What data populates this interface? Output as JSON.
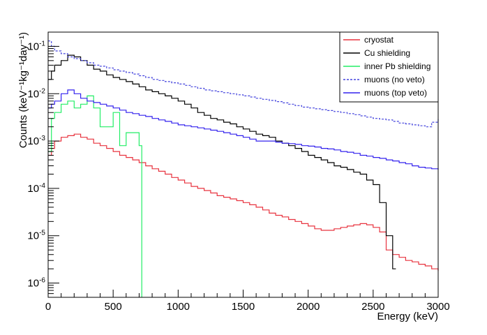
{
  "chart_data": {
    "type": "line",
    "title": "",
    "xlabel": "Energy (keV)",
    "ylabel": "Counts (keV⁻¹kg⁻¹day⁻¹)",
    "xlim": [
      0,
      3000
    ],
    "ylim": [
      5e-07,
      0.2
    ],
    "yscale": "log",
    "grid": false,
    "legend_position": "top-right",
    "x_ticks": [
      0,
      500,
      1000,
      1500,
      2000,
      2500,
      3000
    ],
    "x_tick_labels": [
      "0",
      "500",
      "1000",
      "1500",
      "2000",
      "2500",
      "3000"
    ],
    "y_ticks": [
      1e-06,
      1e-05,
      0.0001,
      0.001,
      0.01,
      0.1
    ],
    "y_tick_labels": [
      {
        "base": "10",
        "exp": "-6"
      },
      {
        "base": "10",
        "exp": "-5"
      },
      {
        "base": "10",
        "exp": "-4"
      },
      {
        "base": "10",
        "exp": "-3"
      },
      {
        "base": "10",
        "exp": "-2"
      },
      {
        "base": "10",
        "exp": "-1"
      }
    ],
    "series": [
      {
        "name": "cryostat",
        "color": "#e8333f",
        "dash": false,
        "x": [
          0,
          25,
          50,
          100,
          150,
          200,
          250,
          300,
          350,
          400,
          450,
          500,
          550,
          600,
          650,
          700,
          750,
          800,
          850,
          900,
          950,
          1000,
          1050,
          1100,
          1150,
          1200,
          1250,
          1300,
          1350,
          1400,
          1450,
          1500,
          1550,
          1600,
          1650,
          1700,
          1750,
          1800,
          1850,
          1900,
          1950,
          2000,
          2050,
          2100,
          2150,
          2200,
          2250,
          2300,
          2350,
          2400,
          2450,
          2500,
          2550,
          2600,
          2650,
          2700,
          2750,
          2800,
          2850,
          2900,
          2950,
          3000
        ],
        "y": [
          0.0005,
          0.0007,
          0.001,
          0.0012,
          0.0013,
          0.0014,
          0.0012,
          0.0011,
          0.0009,
          0.0008,
          0.0007,
          0.0006,
          0.0005,
          0.00045,
          0.0004,
          0.00035,
          0.0003,
          0.00026,
          0.00023,
          0.0002,
          0.00017,
          0.00015,
          0.00013,
          0.00011,
          0.0001,
          9e-05,
          8e-05,
          7e-05,
          6.5e-05,
          6e-05,
          5.5e-05,
          5e-05,
          4.5e-05,
          4e-05,
          3.5e-05,
          3e-05,
          2.7e-05,
          2.5e-05,
          2.2e-05,
          2e-05,
          1.8e-05,
          1.6e-05,
          1.4e-05,
          1.3e-05,
          1.3e-05,
          1.4e-05,
          1.5e-05,
          1.6e-05,
          1.7e-05,
          1.8e-05,
          1.7e-05,
          1.5e-05,
          1.2e-05,
          5e-06,
          4e-06,
          3.5e-06,
          3e-06,
          2.8e-06,
          2.5e-06,
          2.3e-06,
          2e-06,
          1.8e-06
        ]
      },
      {
        "name": "Cu shielding",
        "color": "#000000",
        "dash": false,
        "x": [
          0,
          25,
          50,
          100,
          150,
          200,
          250,
          300,
          350,
          400,
          450,
          500,
          550,
          600,
          650,
          700,
          750,
          800,
          850,
          900,
          950,
          1000,
          1050,
          1100,
          1150,
          1200,
          1250,
          1300,
          1350,
          1400,
          1450,
          1500,
          1550,
          1600,
          1650,
          1700,
          1750,
          1800,
          1850,
          1900,
          1950,
          2000,
          2050,
          2100,
          2150,
          2200,
          2250,
          2300,
          2350,
          2400,
          2450,
          2500,
          2550,
          2600,
          2650
        ],
        "y": [
          0.02,
          0.03,
          0.04,
          0.05,
          0.065,
          0.06,
          0.05,
          0.04,
          0.033,
          0.03,
          0.025,
          0.022,
          0.02,
          0.018,
          0.016,
          0.014,
          0.012,
          0.011,
          0.01,
          0.009,
          0.008,
          0.007,
          0.006,
          0.005,
          0.004,
          0.0035,
          0.003,
          0.0028,
          0.0025,
          0.0023,
          0.002,
          0.0018,
          0.0016,
          0.0014,
          0.0013,
          0.0012,
          0.001,
          0.0009,
          0.0008,
          0.0007,
          0.0006,
          0.0005,
          0.00045,
          0.0004,
          0.00035,
          0.0003,
          0.00028,
          0.00025,
          0.00022,
          0.0002,
          0.00015,
          0.00012,
          5e-05,
          1e-05,
          2e-06
        ]
      },
      {
        "name": "inner Pb shielding",
        "color": "#22ee66",
        "dash": false,
        "x": [
          0,
          25,
          50,
          100,
          150,
          200,
          250,
          300,
          350,
          400,
          450,
          500,
          550,
          600,
          650,
          700,
          720
        ],
        "y": [
          0.0006,
          0.003,
          0.004,
          0.006,
          0.007,
          0.005,
          0.006,
          0.009,
          0.005,
          0.002,
          0.002,
          0.004,
          0.0008,
          0.0015,
          0.0015,
          0.0008,
          5e-07
        ]
      },
      {
        "name": "muons (no veto)",
        "color": "#4444dd",
        "dash": true,
        "x": [
          0,
          25,
          50,
          100,
          150,
          200,
          250,
          300,
          350,
          400,
          450,
          500,
          550,
          600,
          650,
          700,
          750,
          800,
          850,
          900,
          950,
          1000,
          1050,
          1100,
          1150,
          1200,
          1250,
          1300,
          1350,
          1400,
          1450,
          1500,
          1550,
          1600,
          1650,
          1700,
          1750,
          1800,
          1850,
          1900,
          1950,
          2000,
          2050,
          2100,
          2150,
          2200,
          2250,
          2300,
          2350,
          2400,
          2450,
          2500,
          2550,
          2600,
          2650,
          2700,
          2750,
          2800,
          2850,
          2900,
          2950,
          3000
        ],
        "y": [
          0.13,
          0.1,
          0.08,
          0.07,
          0.06,
          0.055,
          0.05,
          0.045,
          0.04,
          0.038,
          0.035,
          0.032,
          0.03,
          0.028,
          0.026,
          0.024,
          0.022,
          0.02,
          0.019,
          0.018,
          0.017,
          0.016,
          0.015,
          0.014,
          0.013,
          0.012,
          0.0115,
          0.011,
          0.0105,
          0.01,
          0.0095,
          0.009,
          0.0085,
          0.008,
          0.0076,
          0.0072,
          0.0068,
          0.0064,
          0.006,
          0.0056,
          0.0052,
          0.005,
          0.0048,
          0.0046,
          0.0044,
          0.0042,
          0.004,
          0.0038,
          0.0036,
          0.0034,
          0.0032,
          0.003,
          0.0029,
          0.0028,
          0.0026,
          0.0024,
          0.0023,
          0.0022,
          0.0021,
          0.002,
          0.0025,
          0.003
        ]
      },
      {
        "name": "muons (top veto)",
        "color": "#3322ee",
        "dash": false,
        "x": [
          0,
          25,
          50,
          100,
          150,
          200,
          250,
          300,
          350,
          400,
          450,
          500,
          550,
          600,
          650,
          700,
          750,
          800,
          850,
          900,
          950,
          1000,
          1050,
          1100,
          1150,
          1200,
          1250,
          1300,
          1350,
          1400,
          1450,
          1500,
          1550,
          1600,
          1650,
          1700,
          1750,
          1800,
          1850,
          1900,
          1950,
          2000,
          2050,
          2100,
          2150,
          2200,
          2250,
          2300,
          2350,
          2400,
          2450,
          2500,
          2550,
          2600,
          2650,
          2700,
          2750,
          2800,
          2850,
          2900,
          2950,
          3000
        ],
        "y": [
          0.005,
          0.006,
          0.007,
          0.01,
          0.012,
          0.01,
          0.008,
          0.007,
          0.0065,
          0.006,
          0.0055,
          0.005,
          0.0045,
          0.004,
          0.0038,
          0.0035,
          0.0033,
          0.003,
          0.0028,
          0.0026,
          0.0024,
          0.0022,
          0.0021,
          0.002,
          0.0019,
          0.0018,
          0.0017,
          0.0016,
          0.0015,
          0.0014,
          0.0013,
          0.0012,
          0.0011,
          0.001,
          0.001,
          0.001,
          0.00095,
          0.0009,
          0.00088,
          0.00085,
          0.0008,
          0.00078,
          0.00075,
          0.0007,
          0.00068,
          0.00065,
          0.0006,
          0.00058,
          0.00055,
          0.0005,
          0.00048,
          0.00045,
          0.00043,
          0.0004,
          0.00038,
          0.00035,
          0.00033,
          0.0003,
          0.00028,
          0.00027,
          0.00026,
          0.00025
        ]
      }
    ]
  }
}
